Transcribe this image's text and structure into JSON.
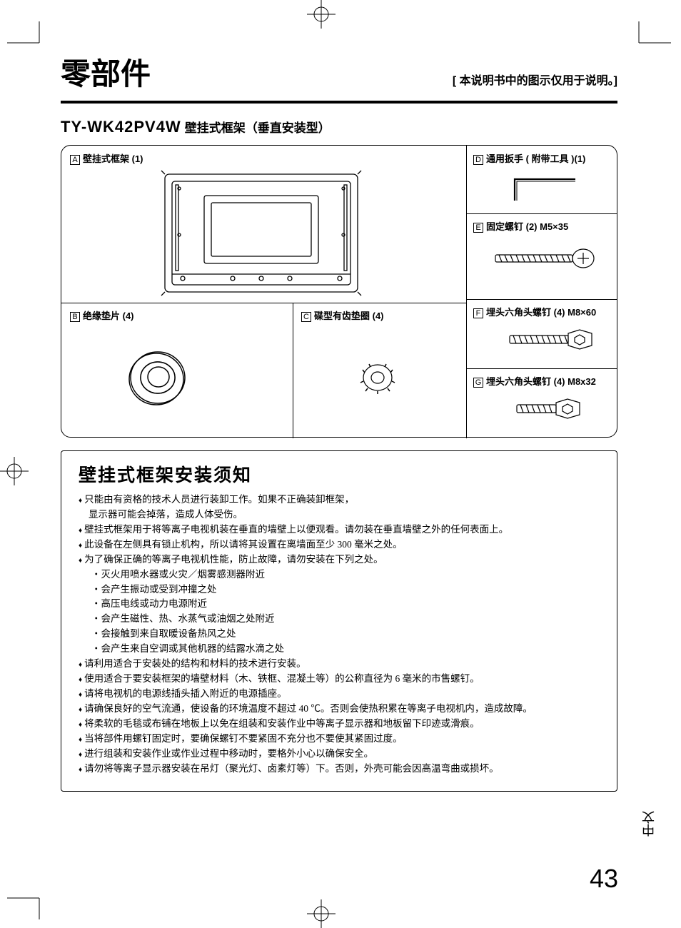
{
  "colors": {
    "ink": "#000000",
    "bg": "#ffffff"
  },
  "header": {
    "title": "零部件",
    "note": "[ 本说明书中的图示仅用于说明。]"
  },
  "model": {
    "number": "TY-WK42PV4W",
    "subtitle": "壁挂式框架（垂直安装型）"
  },
  "parts": {
    "A": {
      "letter": "A",
      "label": "壁挂式框架 (1)"
    },
    "B": {
      "letter": "B",
      "label": "绝缘垫片 (4)"
    },
    "C": {
      "letter": "C",
      "label": "碟型有齿垫圈 (4)"
    },
    "D": {
      "letter": "D",
      "label": "通用扳手 ( 附带工具 )(1)"
    },
    "E": {
      "letter": "E",
      "label": "固定螺钉 (2) M5×35"
    },
    "F": {
      "letter": "F",
      "label": "埋头六角头螺钉 (4) M8×60"
    },
    "G": {
      "letter": "G",
      "label": "埋头六角头螺钉 (4) M8x32"
    }
  },
  "notice": {
    "title": "壁挂式框架安装须知",
    "items": [
      {
        "t": "bullet",
        "text": "只能由有资格的技术人员进行装卸工作。如果不正确装卸框架，"
      },
      {
        "t": "cont",
        "text": "显示器可能会掉落，造成人体受伤。"
      },
      {
        "t": "bullet",
        "text": "壁挂式框架用于将等离子电视机装在垂直的墙壁上以便观看。请勿装在垂直墙壁之外的任何表面上。"
      },
      {
        "t": "bullet",
        "text": "此设备在左侧具有锁止机构，所以请将其设置在离墙面至少 300 毫米之处。"
      },
      {
        "t": "bullet",
        "text": "为了确保正确的等离子电视机性能，防止故障，请勿安装在下列之处。"
      },
      {
        "t": "sub",
        "text": "灭火用喷水器或火灾／烟雾感测器附近"
      },
      {
        "t": "sub",
        "text": "会产生振动或受到冲撞之处"
      },
      {
        "t": "sub",
        "text": "高压电线或动力电源附近"
      },
      {
        "t": "sub",
        "text": "会产生磁性、热、水蒸气或油烟之处附近"
      },
      {
        "t": "sub",
        "text": "会接触到来自取暖设备热风之处"
      },
      {
        "t": "sub",
        "text": "会产生来自空调或其他机器的结露水滴之处"
      },
      {
        "t": "bullet",
        "text": "请利用适合于安装处的结构和材料的技术进行安装。"
      },
      {
        "t": "bullet",
        "text": "使用适合于要安装框架的墙壁材料（木、铁框、混凝土等）的公称直径为 6 毫米的市售螺钉。"
      },
      {
        "t": "bullet",
        "text": "请将电视机的电源线插头插入附近的电源插座。"
      },
      {
        "t": "bullet",
        "text": "请确保良好的空气流通，使设备的环境温度不超过 40 ℃。否则会使热积累在等离子电视机内，造成故障。"
      },
      {
        "t": "bullet",
        "text": "将柔软的毛毯或布铺在地板上以免在组装和安装作业中等离子显示器和地板留下印迹或滑痕。"
      },
      {
        "t": "bullet",
        "text": "当将部件用螺钉固定时，要确保螺钉不要紧固不充分也不要使其紧固过度。"
      },
      {
        "t": "bullet",
        "text": "进行组装和安装作业或作业过程中移动时，要格外小心以确保安全。"
      },
      {
        "t": "bullet",
        "text": "请勿将等离子显示器安装在吊灯（聚光灯、卤素灯等）下。否则，外壳可能会因高温弯曲或损坏。"
      }
    ]
  },
  "langTab": "中文",
  "pageNumber": "43"
}
